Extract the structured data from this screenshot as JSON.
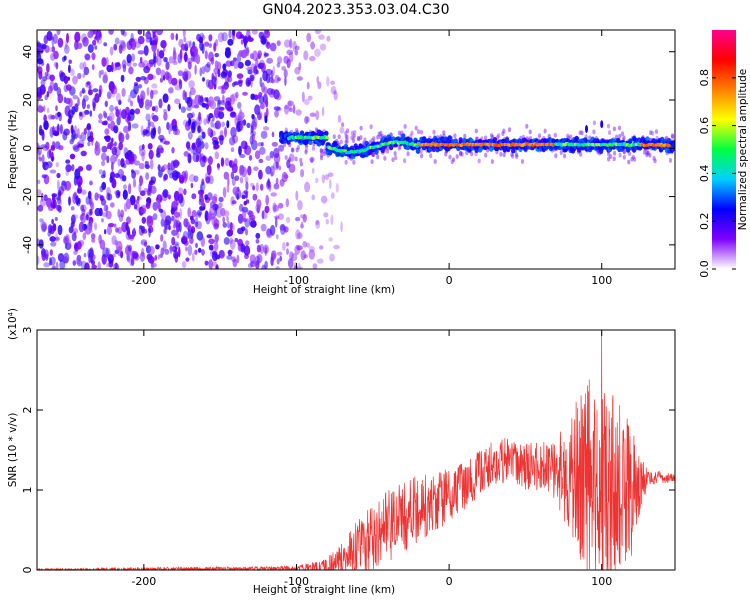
{
  "title": "GN04.2023.353.03.04.C30",
  "chart_data": [
    {
      "type": "heatmap",
      "xlabel": "Height of straight line (km)",
      "ylabel": "Frequency (Hz)",
      "xlim": [
        -270,
        148
      ],
      "ylim": [
        -50,
        49
      ],
      "x_ticks": [
        -200,
        -100,
        0,
        100
      ],
      "y_ticks": [
        -40,
        -20,
        0,
        20,
        40
      ],
      "colorbar": {
        "label": "Normalized spectral amplitude",
        "range": [
          0,
          1
        ],
        "ticks": [
          0.0,
          0.2,
          0.4,
          0.6,
          0.8
        ],
        "colors": [
          "#ffffff",
          "#7f00ff",
          "#0000ff",
          "#00d0ff",
          "#00ff40",
          "#ffff00",
          "#ff8000",
          "#ff0000",
          "#ff0090"
        ]
      },
      "features": {
        "noise_region_x": [
          -270,
          -90
        ],
        "band_center_hz": 1.5,
        "band_from_km": -110,
        "band_to_km": 148,
        "peak_amplitude": 0.8
      }
    },
    {
      "type": "line",
      "xlabel": "Height of straight line (km)",
      "ylabel": "SNR (10 * v/v)",
      "y_multiplier": "(x10⁴)",
      "xlim": [
        -270,
        148
      ],
      "ylim": [
        0,
        3
      ],
      "x_ticks": [
        -200,
        -100,
        0,
        100
      ],
      "y_ticks": [
        0,
        1,
        2,
        3
      ],
      "color": "#ee3333",
      "envelope": {
        "x": [
          -270,
          -100,
          -80,
          -70,
          -60,
          -50,
          -40,
          -30,
          -20,
          -10,
          0,
          10,
          20,
          30,
          40,
          50,
          60,
          70,
          80,
          90,
          100,
          110,
          120,
          130,
          148
        ],
        "mean": [
          0.0,
          0.02,
          0.05,
          0.15,
          0.3,
          0.4,
          0.55,
          0.65,
          0.75,
          0.85,
          0.95,
          1.05,
          1.2,
          1.35,
          1.35,
          1.3,
          1.3,
          1.25,
          1.2,
          1.1,
          1.0,
          0.95,
          1.0,
          1.15,
          1.15
        ],
        "spread": [
          0.02,
          0.03,
          0.1,
          0.2,
          0.35,
          0.4,
          0.45,
          0.45,
          0.45,
          0.4,
          0.35,
          0.3,
          0.3,
          0.3,
          0.3,
          0.3,
          0.3,
          0.4,
          0.8,
          1.3,
          1.3,
          1.2,
          0.8,
          0.1,
          0.05
        ]
      },
      "peak": {
        "x": 100,
        "y": 3.0
      }
    }
  ]
}
